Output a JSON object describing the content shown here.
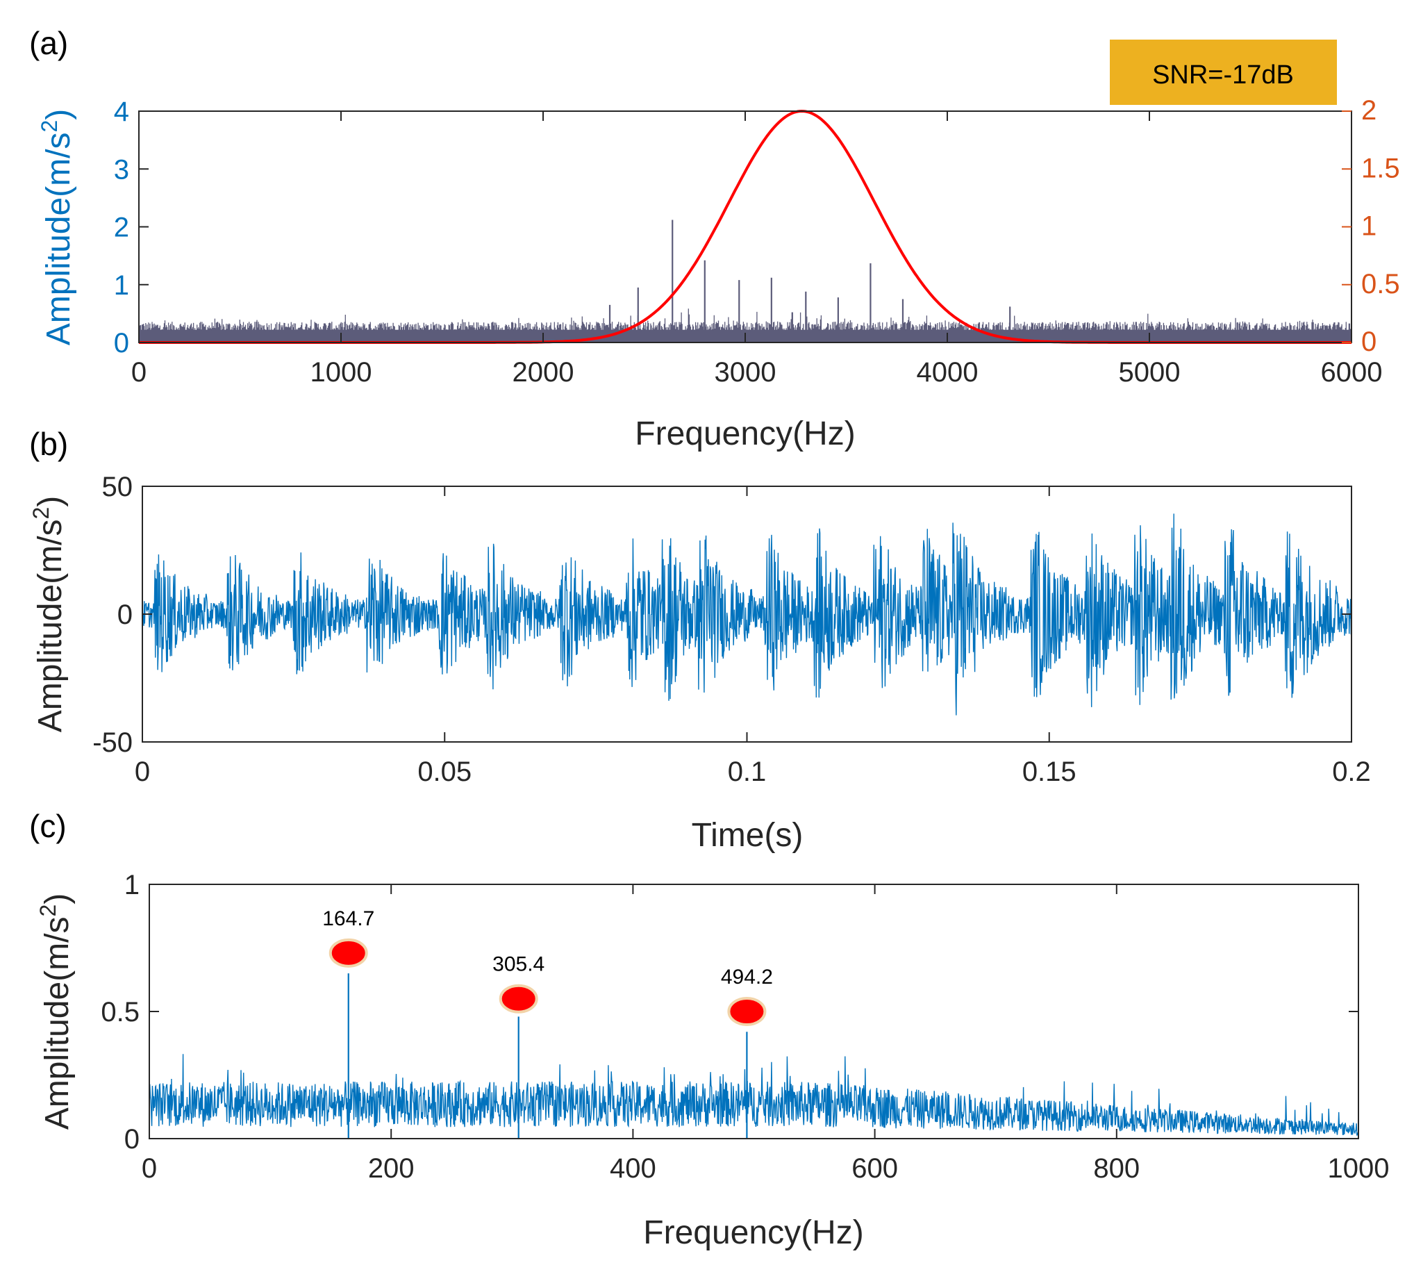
{
  "colors": {
    "blue": "#0072bd",
    "orange": "#d95319",
    "red": "#ff0000",
    "spectrum": "#5c5c7a",
    "snr_box": "#edb120",
    "marker_edge": "#f2d3a8",
    "axis": "#262626"
  },
  "chart_data": [
    {
      "type": "line",
      "panel_label": "(a)",
      "annotation": "SNR=-17dB",
      "xlabel": "Frequency(Hz)",
      "ylabel": "Amplitude(m/s",
      "ylabel_sup": "2",
      "ylabel_end": ")",
      "xlim": [
        0,
        6000
      ],
      "ylim": [
        0,
        4
      ],
      "y2lim": [
        0,
        2
      ],
      "xticks": [
        "0",
        "1000",
        "2000",
        "3000",
        "4000",
        "5000",
        "6000"
      ],
      "yticks": [
        "0",
        "1",
        "2",
        "3",
        "4"
      ],
      "y2ticks": [
        "0",
        "0.5",
        "1",
        "1.5",
        "2"
      ],
      "noise_floor": 0.4,
      "peaks": [
        {
          "x": 2470,
          "y": 0.95
        },
        {
          "x": 2640,
          "y": 2.12
        },
        {
          "x": 2800,
          "y": 1.42
        },
        {
          "x": 2970,
          "y": 1.08
        },
        {
          "x": 3130,
          "y": 1.12
        },
        {
          "x": 3300,
          "y": 0.88
        },
        {
          "x": 3460,
          "y": 0.78
        },
        {
          "x": 3620,
          "y": 1.37
        },
        {
          "x": 3780,
          "y": 0.75
        },
        {
          "x": 2330,
          "y": 0.65
        },
        {
          "x": 4310,
          "y": 0.62
        }
      ],
      "gaussian_filter": {
        "center": 3280,
        "sigma": 360,
        "peak": 2.0
      }
    },
    {
      "type": "line",
      "panel_label": "(b)",
      "xlabel": "Time(s)",
      "ylabel": "Amplitude(m/s",
      "ylabel_sup": "2",
      "ylabel_end": ")",
      "xlim": [
        0,
        0.2
      ],
      "ylim": [
        -50,
        50
      ],
      "xticks": [
        "0",
        "0.05",
        "0.1",
        "0.15",
        "0.2"
      ],
      "yticks": [
        "-50",
        "0",
        "50"
      ],
      "envelope_max": 43,
      "envelope_min": -44
    },
    {
      "type": "line",
      "panel_label": "(c)",
      "xlabel": "Frequency(Hz)",
      "ylabel": "Amplitude(m/s",
      "ylabel_sup": "2",
      "ylabel_end": ")",
      "xlim": [
        0,
        1000
      ],
      "ylim": [
        0,
        1
      ],
      "xticks": [
        "0",
        "200",
        "400",
        "600",
        "800",
        "1000"
      ],
      "yticks": [
        "0",
        "0.5",
        "1"
      ],
      "marked_peaks": [
        {
          "x": 164.7,
          "y": 0.65,
          "marker_y": 0.73,
          "label": "164.7"
        },
        {
          "x": 305.4,
          "y": 0.48,
          "marker_y": 0.55,
          "label": "305.4"
        },
        {
          "x": 494.2,
          "y": 0.42,
          "marker_y": 0.5,
          "label": "494.2"
        }
      ]
    }
  ]
}
